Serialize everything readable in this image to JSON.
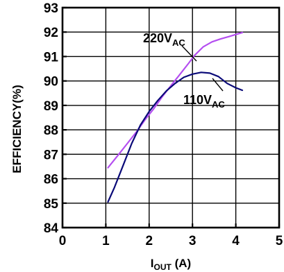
{
  "chart_data": {
    "type": "line",
    "title": "",
    "xlabel": {
      "main": "I",
      "sub": "OUT",
      "unit": " (A)"
    },
    "ylabel": "EFFICIENCY(%)",
    "xlim": [
      0,
      5
    ],
    "ylim": [
      84,
      93
    ],
    "xticks": [
      0,
      1,
      2,
      3,
      4,
      5
    ],
    "yticks": [
      84,
      85,
      86,
      87,
      88,
      89,
      90,
      91,
      92,
      93
    ],
    "grid": true,
    "series": [
      {
        "label": {
          "main": "220V",
          "sub": "AC"
        },
        "color": "#b44ef0",
        "x": [
          1.05,
          1.3,
          1.5,
          1.7,
          1.9,
          2.1,
          2.3,
          2.5,
          2.7,
          2.9,
          3.05,
          3.25,
          3.45,
          3.65,
          3.85,
          4.0,
          4.15
        ],
        "y": [
          86.45,
          87.0,
          87.45,
          87.9,
          88.4,
          88.85,
          89.35,
          89.8,
          90.25,
          90.7,
          91.05,
          91.4,
          91.6,
          91.72,
          91.82,
          91.9,
          91.98
        ]
      },
      {
        "label": {
          "main": "110V",
          "sub": "AC"
        },
        "color": "#0a0a78",
        "x": [
          1.05,
          1.2,
          1.4,
          1.6,
          1.8,
          2.0,
          2.2,
          2.4,
          2.6,
          2.8,
          3.0,
          3.2,
          3.4,
          3.6,
          3.8,
          4.0,
          4.15
        ],
        "y": [
          85.05,
          85.65,
          86.55,
          87.45,
          88.2,
          88.75,
          89.2,
          89.6,
          89.9,
          90.15,
          90.28,
          90.35,
          90.32,
          90.18,
          89.9,
          89.72,
          89.62
        ]
      }
    ]
  }
}
